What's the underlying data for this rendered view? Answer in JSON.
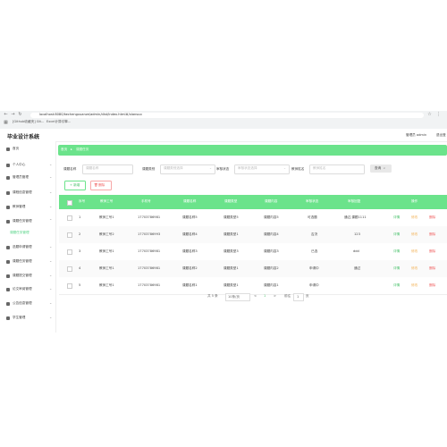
{
  "browser": {
    "url": "localhost:8080/kechengxuanze/admin/dist/index.html#/xiansuo",
    "bookmarks": [
      "[Github收藏夹] Git...",
      "Excel计算引擎..."
    ]
  },
  "app": {
    "title": "毕业设计系统",
    "user": "管理员 admin",
    "logout": "退出登"
  },
  "sidebar": {
    "items": [
      {
        "label": "首页"
      },
      {
        "label": "个人中心"
      },
      {
        "label": "管理员管理"
      },
      {
        "label": "课程信息管理"
      },
      {
        "label": "教师管理"
      },
      {
        "label": "课题任务管理"
      },
      {
        "label": "课题任务管理"
      },
      {
        "label": "选题申请管理"
      },
      {
        "label": "课题任务管理"
      },
      {
        "label": "课题提交管理"
      },
      {
        "label": "论文审阅管理"
      },
      {
        "label": "公告信息管理"
      },
      {
        "label": "学生管理"
      }
    ]
  },
  "breadcrumb": {
    "home": "首页",
    "current": "课题任务"
  },
  "filters": {
    "labels": [
      "课题名称",
      "课题类别",
      "审核状态",
      "教师姓名"
    ],
    "placeholders": [
      "课题名称",
      "课题类别选择",
      "审核状态选择",
      "教师姓名"
    ],
    "query": "查询"
  },
  "actions": {
    "add": "+ 新增",
    "delete": "删除"
  },
  "table": {
    "headers": [
      "序号",
      "教师工号",
      "手机号",
      "课题名称",
      "课题类型",
      "课题内容",
      "审核状态",
      "审核回复",
      "操作"
    ],
    "rows": [
      {
        "idx": "1",
        "tid": "教师工号1",
        "phone": "17703786981",
        "name": "课题名称5",
        "type": "课题类型5",
        "content": "课题内容5",
        "status": "可选题",
        "reply": "通过,课题1111",
        "view": "详情",
        "edit": "修改",
        "del": "删除"
      },
      {
        "idx": "2",
        "tid": "教师工号2",
        "phone": "17703786993",
        "name": "课题名称4",
        "type": "课题类型1",
        "content": "课题内容4",
        "status": "否决",
        "reply": "123",
        "view": "详情",
        "edit": "修改",
        "del": "删除"
      },
      {
        "idx": "3",
        "tid": "教师工号1",
        "phone": "17703786981",
        "name": "课题名称3",
        "type": "课题类型3",
        "content": "课题内容3",
        "status": "已选",
        "reply": "ddd",
        "view": "详情",
        "edit": "修改",
        "del": "删除"
      },
      {
        "idx": "4",
        "tid": "教师工号1",
        "phone": "17703786981",
        "name": "课题名称2",
        "type": "课题类型1",
        "content": "课题内容2",
        "status": "申请中",
        "reply": "通过",
        "view": "详情",
        "edit": "修改",
        "del": "删除"
      },
      {
        "idx": "5",
        "tid": "教师工号1",
        "phone": "17703786981",
        "name": "课题名称1",
        "type": "课题类型1",
        "content": "课题内容1",
        "status": "申请中",
        "reply": "",
        "view": "详情",
        "edit": "修改",
        "del": "删除"
      }
    ]
  },
  "pagination": {
    "total": "共 5 条",
    "size": "10条/页",
    "prev": "<",
    "current": "1",
    "next": ">",
    "goto": "前往",
    "page": "1",
    "page_unit": "页"
  }
}
